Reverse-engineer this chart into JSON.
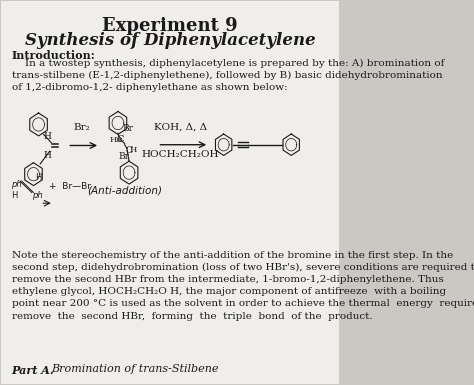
{
  "title": "Experiment 9",
  "subtitle": "Synthesis of Diphenylacetylene",
  "intro_header": "Introduction:",
  "intro_text": "    In a twostep synthesis, diphenylacetylene is prepared by the: A) bromination of\ntrans-stilbene (E-1,2-diphenylethene), followed by B) basic didehydrobromination\nof 1,2-dibromo-1,2- diphenylethane as shown below:",
  "anti_addition": "(Anti-addition)",
  "reagent1": "Br₂",
  "reagent2": "KOH, Δ, Δ",
  "reagent2b": "HOCH₂CH₂OH",
  "note_text": "Note the stereochemistry of the anti-addition of the bromine in the first step. In the\nsecond step, didehydrobromination (loss of two HBr's), severe conditions are required to\nremove the second HBr from the intermediate, 1-bromo-1,2-diphenylethene. Thus\nethylene glycol, HOCH₂CH₂O H, the major component of antifreeze  with a boiling\npoint near 200 °C is used as the solvent in order to achieve the thermal  energy  required  to\nremove  the  second HBr,  forming  the  triple  bond  of the  product.",
  "part_a": "Part A.",
  "part_a_title": "Bromination of trans-Stilbene",
  "bg_color": "#cbc7c3",
  "paper_color": "#f0eeeb",
  "text_color": "#1a1a1a",
  "title_fontsize": 13,
  "subtitle_fontsize": 12,
  "body_fontsize": 7.5
}
